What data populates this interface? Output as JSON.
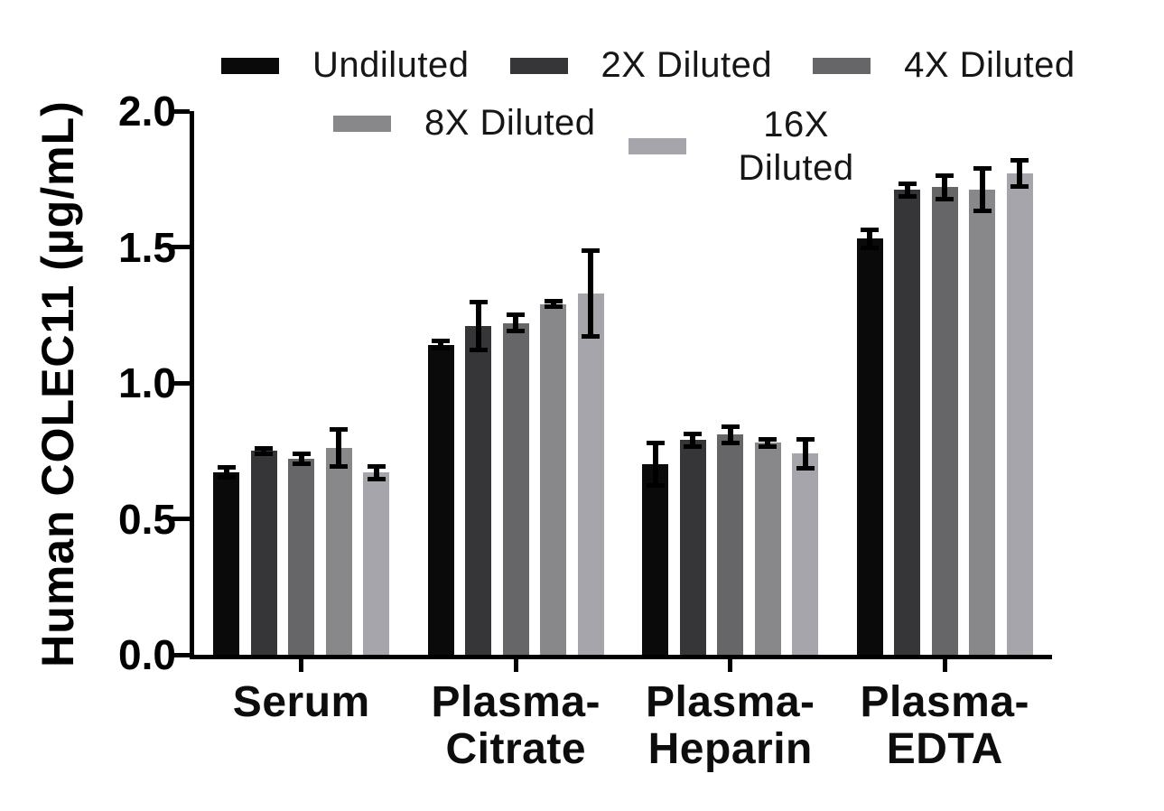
{
  "chart_data": {
    "type": "bar",
    "title": "",
    "ylabel": "Human COLEC11 (µg/mL)",
    "xlabel": "",
    "ylim": [
      0,
      2
    ],
    "yticks": [
      "0.0",
      "0.5",
      "1.0",
      "1.5",
      "2.0"
    ],
    "grid": false,
    "error_bars": true,
    "legend_position": "top",
    "legend_display": [
      "Undiluted",
      "2X Diluted",
      "4X Diluted",
      "8X Diluted",
      "16X\nDiluted"
    ],
    "categories": [
      "Serum",
      "Plasma-Citrate",
      "Plasma-Heparin",
      "Plasma-EDTA"
    ],
    "category_display_lines": [
      [
        "Serum"
      ],
      [
        "Plasma-",
        "Citrate"
      ],
      [
        "Plasma-",
        "Heparin"
      ],
      [
        "Plasma-",
        "EDTA"
      ]
    ],
    "series": [
      {
        "name": "Undiluted",
        "color": "#0a0a0a",
        "values": [
          0.67,
          1.14,
          0.7,
          1.53
        ],
        "errors": [
          0.02,
          0.015,
          0.08,
          0.035
        ]
      },
      {
        "name": "2X Diluted",
        "color": "#363638",
        "values": [
          0.75,
          1.21,
          0.79,
          1.71
        ],
        "errors": [
          0.012,
          0.09,
          0.025,
          0.025
        ]
      },
      {
        "name": "4X Diluted",
        "color": "#666668",
        "values": [
          0.72,
          1.22,
          0.81,
          1.72
        ],
        "errors": [
          0.02,
          0.032,
          0.032,
          0.045
        ]
      },
      {
        "name": "8X Diluted",
        "color": "#88888a",
        "values": [
          0.76,
          1.29,
          0.78,
          1.71
        ],
        "errors": [
          0.07,
          0.012,
          0.015,
          0.08
        ]
      },
      {
        "name": "16X Diluted",
        "color": "#a5a5ab",
        "values": [
          0.67,
          1.33,
          0.74,
          1.77
        ],
        "errors": [
          0.025,
          0.16,
          0.055,
          0.05
        ]
      }
    ]
  }
}
